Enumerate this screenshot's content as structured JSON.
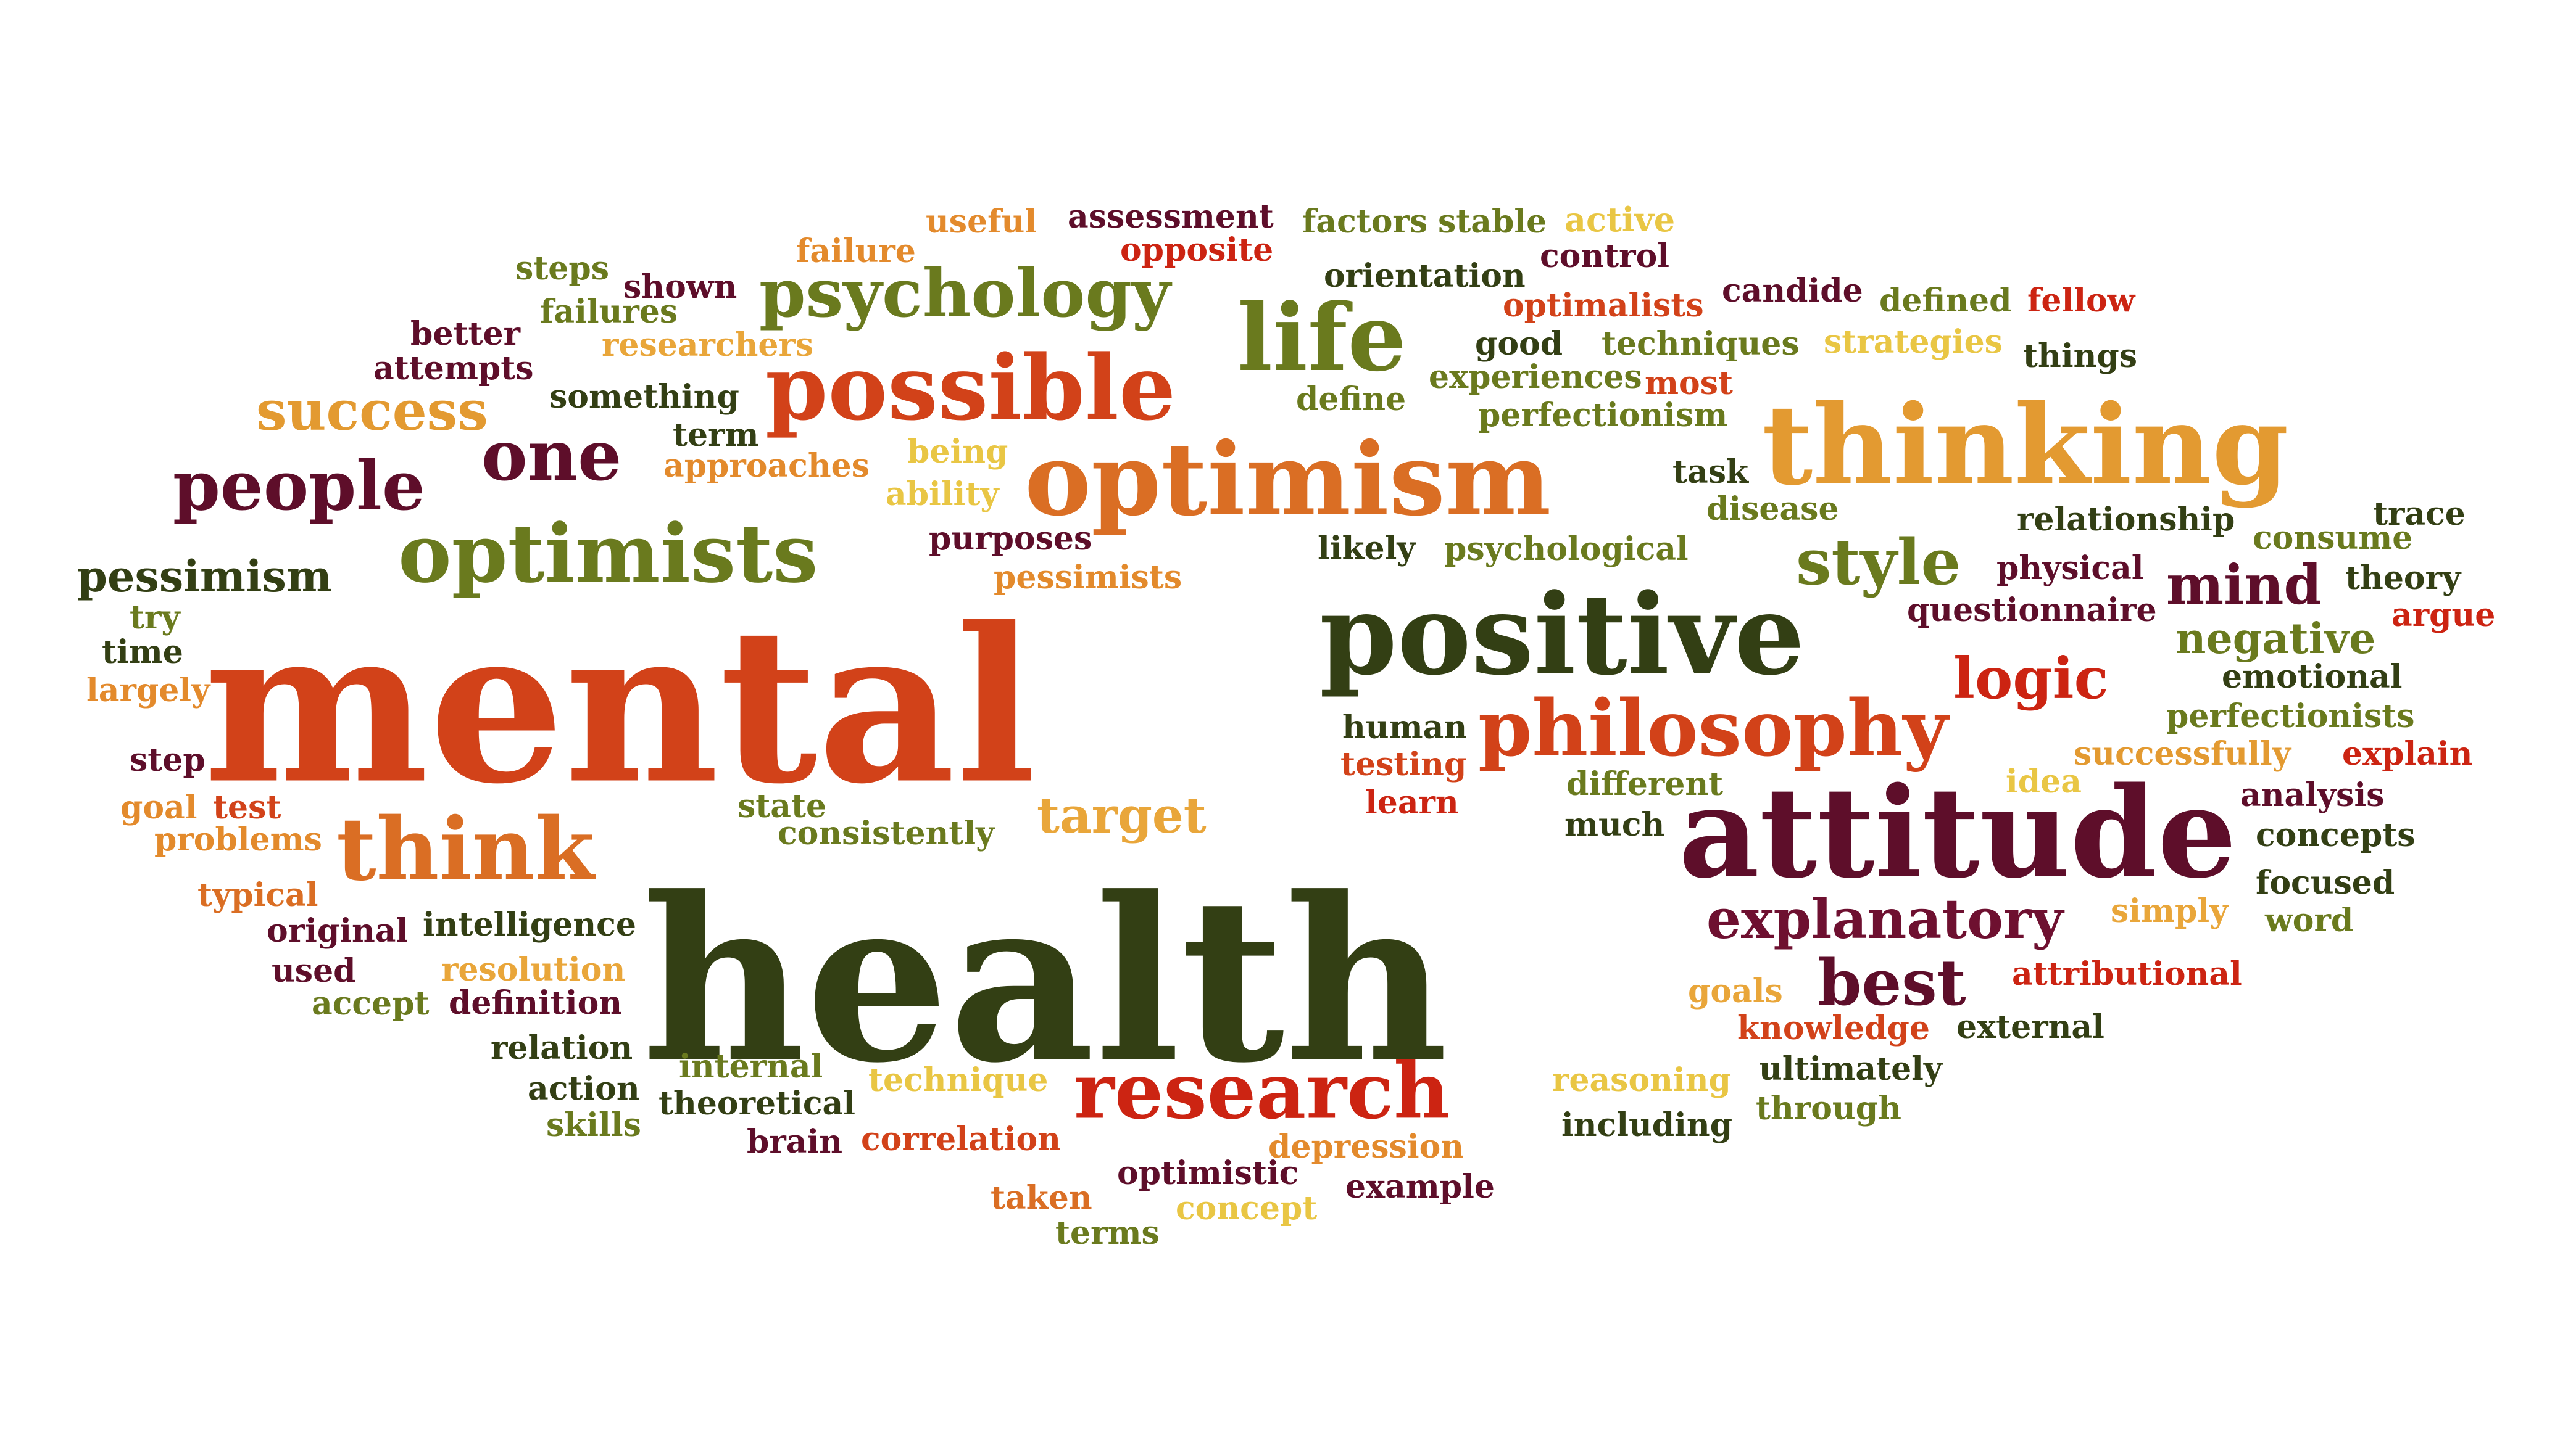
{
  "palette": {
    "dark_green": "#333F14",
    "olive": "#6A7A1E",
    "red": "#CC2412",
    "red_orange": "#D24219",
    "orange": "#DA6E24",
    "amber": "#E39A31",
    "yellow": "#E9C644",
    "maroon": "#5E0E2A",
    "wine": "#6E1030"
  },
  "words": [
    {
      "text": "useful",
      "color": "#E38A2C"
    },
    {
      "text": "assessment",
      "color": "#5E0E2A"
    },
    {
      "text": "factors",
      "color": "#6A7A1E"
    },
    {
      "text": "stable",
      "color": "#6A7A1E"
    },
    {
      "text": "active",
      "color": "#E9C644"
    },
    {
      "text": "failure",
      "color": "#E38A2C"
    },
    {
      "text": "opposite",
      "color": "#CC2412"
    },
    {
      "text": "orientation",
      "color": "#333F14"
    },
    {
      "text": "control",
      "color": "#5E0E2A"
    },
    {
      "text": "steps",
      "color": "#6A7A1E"
    },
    {
      "text": "shown",
      "color": "#5E0E2A"
    },
    {
      "text": "psychology",
      "color": "#6A7A1E"
    },
    {
      "text": "life",
      "color": "#6A7A1E"
    },
    {
      "text": "optimalists",
      "color": "#D24219"
    },
    {
      "text": "candide",
      "color": "#5E0E2A"
    },
    {
      "text": "defined",
      "color": "#6A7A1E"
    },
    {
      "text": "fellow",
      "color": "#CC2412"
    },
    {
      "text": "failures",
      "color": "#6A7A1E"
    },
    {
      "text": "better",
      "color": "#5E0E2A"
    },
    {
      "text": "researchers",
      "color": "#E9A63A"
    },
    {
      "text": "good",
      "color": "#333F14"
    },
    {
      "text": "techniques",
      "color": "#6A7A1E"
    },
    {
      "text": "strategies",
      "color": "#E9C644"
    },
    {
      "text": "things",
      "color": "#333F14"
    },
    {
      "text": "attempts",
      "color": "#5E0E2A"
    },
    {
      "text": "possible",
      "color": "#D24219"
    },
    {
      "text": "experiences",
      "color": "#6A7A1E"
    },
    {
      "text": "most",
      "color": "#D24219"
    },
    {
      "text": "success",
      "color": "#E39A31"
    },
    {
      "text": "something",
      "color": "#333F14"
    },
    {
      "text": "define",
      "color": "#6A7A1E"
    },
    {
      "text": "perfectionism",
      "color": "#6A7A1E"
    },
    {
      "text": "thinking",
      "color": "#E39A31"
    },
    {
      "text": "term",
      "color": "#333F14"
    },
    {
      "text": "being",
      "color": "#E9C644"
    },
    {
      "text": "one",
      "color": "#5E0E2A"
    },
    {
      "text": "people",
      "color": "#5E0E2A"
    },
    {
      "text": "approaches",
      "color": "#E38A2C"
    },
    {
      "text": "optimism",
      "color": "#DA6E24"
    },
    {
      "text": "task",
      "color": "#333F14"
    },
    {
      "text": "ability",
      "color": "#E9C644"
    },
    {
      "text": "disease",
      "color": "#6A7A1E"
    },
    {
      "text": "trace",
      "color": "#333F14"
    },
    {
      "text": "optimists",
      "color": "#6A7A1E"
    },
    {
      "text": "purposes",
      "color": "#5E0E2A"
    },
    {
      "text": "likely",
      "color": "#333F14"
    },
    {
      "text": "psychological",
      "color": "#6A7A1E"
    },
    {
      "text": "relationship",
      "color": "#333F14"
    },
    {
      "text": "consume",
      "color": "#6A7A1E"
    },
    {
      "text": "style",
      "color": "#6A7A1E"
    },
    {
      "text": "pessimism",
      "color": "#333F14"
    },
    {
      "text": "pessimists",
      "color": "#E38A2C"
    },
    {
      "text": "physical",
      "color": "#5E0E2A"
    },
    {
      "text": "theory",
      "color": "#333F14"
    },
    {
      "text": "mind",
      "color": "#5E0E2A"
    },
    {
      "text": "try",
      "color": "#6A7A1E"
    },
    {
      "text": "questionnaire",
      "color": "#5E0E2A"
    },
    {
      "text": "argue",
      "color": "#CC2412"
    },
    {
      "text": "mental",
      "color": "#D24219"
    },
    {
      "text": "positive",
      "color": "#333F14"
    },
    {
      "text": "time",
      "color": "#333F14"
    },
    {
      "text": "negative",
      "color": "#6A7A1E"
    },
    {
      "text": "largely",
      "color": "#E38A2C"
    },
    {
      "text": "logic",
      "color": "#CC2412"
    },
    {
      "text": "emotional",
      "color": "#333F14"
    },
    {
      "text": "human",
      "color": "#333F14"
    },
    {
      "text": "philosophy",
      "color": "#D24219"
    },
    {
      "text": "perfectionists",
      "color": "#6A7A1E"
    },
    {
      "text": "step",
      "color": "#5E0E2A"
    },
    {
      "text": "testing",
      "color": "#D24219"
    },
    {
      "text": "successfully",
      "color": "#E39A31"
    },
    {
      "text": "explain",
      "color": "#CC2412"
    },
    {
      "text": "different",
      "color": "#6A7A1E"
    },
    {
      "text": "idea",
      "color": "#E9C644"
    },
    {
      "text": "goal",
      "color": "#E38A2C"
    },
    {
      "text": "test",
      "color": "#D24219"
    },
    {
      "text": "state",
      "color": "#6A7A1E"
    },
    {
      "text": "target",
      "color": "#E9A63A"
    },
    {
      "text": "learn",
      "color": "#CC2412"
    },
    {
      "text": "analysis",
      "color": "#5E0E2A"
    },
    {
      "text": "problems",
      "color": "#E38A2C"
    },
    {
      "text": "think",
      "color": "#DA6E24"
    },
    {
      "text": "consistently",
      "color": "#6A7A1E"
    },
    {
      "text": "much",
      "color": "#333F14"
    },
    {
      "text": "attitude",
      "color": "#5E0E2A"
    },
    {
      "text": "concepts",
      "color": "#333F14"
    },
    {
      "text": "typical",
      "color": "#DA6E24"
    },
    {
      "text": "health",
      "color": "#333F14"
    },
    {
      "text": "focused",
      "color": "#333F14"
    },
    {
      "text": "original",
      "color": "#5E0E2A"
    },
    {
      "text": "intelligence",
      "color": "#333F14"
    },
    {
      "text": "explanatory",
      "color": "#6E1030"
    },
    {
      "text": "simply",
      "color": "#E9A63A"
    },
    {
      "text": "word",
      "color": "#6A7A1E"
    },
    {
      "text": "used",
      "color": "#5E0E2A"
    },
    {
      "text": "resolution",
      "color": "#E9A63A"
    },
    {
      "text": "best",
      "color": "#5E0E2A"
    },
    {
      "text": "attributional",
      "color": "#CC2412"
    },
    {
      "text": "accept",
      "color": "#6A7A1E"
    },
    {
      "text": "definition",
      "color": "#5E0E2A"
    },
    {
      "text": "goals",
      "color": "#E9A63A"
    },
    {
      "text": "relation",
      "color": "#333F14"
    },
    {
      "text": "knowledge",
      "color": "#D24219"
    },
    {
      "text": "external",
      "color": "#333F14"
    },
    {
      "text": "internal",
      "color": "#6A7A1E"
    },
    {
      "text": "action",
      "color": "#333F14"
    },
    {
      "text": "technique",
      "color": "#E9C644"
    },
    {
      "text": "research",
      "color": "#CC2412"
    },
    {
      "text": "reasoning",
      "color": "#E9C644"
    },
    {
      "text": "ultimately",
      "color": "#333F14"
    },
    {
      "text": "theoretical",
      "color": "#333F14"
    },
    {
      "text": "through",
      "color": "#6A7A1E"
    },
    {
      "text": "skills",
      "color": "#6A7A1E"
    },
    {
      "text": "including",
      "color": "#333F14"
    },
    {
      "text": "brain",
      "color": "#5E0E2A"
    },
    {
      "text": "correlation",
      "color": "#D24219"
    },
    {
      "text": "depression",
      "color": "#E38A2C"
    },
    {
      "text": "optimistic",
      "color": "#5E0E2A"
    },
    {
      "text": "taken",
      "color": "#DA6E24"
    },
    {
      "text": "concept",
      "color": "#E9C644"
    },
    {
      "text": "example",
      "color": "#5E0E2A"
    },
    {
      "text": "terms",
      "color": "#6A7A1E"
    }
  ]
}
